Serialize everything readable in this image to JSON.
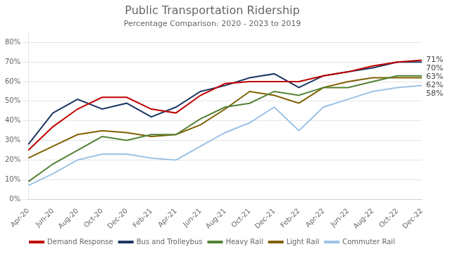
{
  "chart_data": {
    "type": "line",
    "title": "Public Transportation Ridership",
    "subtitle": "Percentage Comparison: 2020 - 2023 to 2019",
    "categories": [
      "Apr-20",
      "Jun-20",
      "Aug-20",
      "Oct-20",
      "Dec-20",
      "Feb-21",
      "Apr-21",
      "Jun-21",
      "Aug-21",
      "Oct-21",
      "Dec-21",
      "Feb-22",
      "Apr-22",
      "Jun-22",
      "Aug-22",
      "Oct-22",
      "Dec-22"
    ],
    "series": [
      {
        "name": "Demand Response",
        "color": "#c00000",
        "values": [
          25,
          37,
          46,
          52,
          52,
          46,
          44,
          53,
          59,
          60,
          60,
          60,
          63,
          65,
          68,
          70,
          71
        ]
      },
      {
        "name": "Bus and Trolleybus",
        "color": "#203864",
        "values": [
          28,
          44,
          51,
          46,
          49,
          42,
          47,
          55,
          58,
          62,
          64,
          57,
          63,
          65,
          67,
          70,
          70
        ]
      },
      {
        "name": "Heavy Rail",
        "color": "#548235",
        "values": [
          9,
          18,
          25,
          32,
          30,
          33,
          33,
          41,
          47,
          49,
          55,
          53,
          57,
          57,
          60,
          63,
          63
        ]
      },
      {
        "name": "Light Rail",
        "color": "#806000",
        "values": [
          21,
          27,
          33,
          35,
          34,
          32,
          33,
          38,
          46,
          55,
          53,
          49,
          57,
          60,
          62,
          62,
          62
        ]
      },
      {
        "name": "Commuter Rail",
        "color": "#9dc3e6",
        "values": [
          7,
          13,
          20,
          23,
          23,
          21,
          20,
          27,
          34,
          39,
          47,
          35,
          47,
          51,
          55,
          57,
          58
        ]
      }
    ],
    "ylim": [
      0,
      85
    ],
    "yticks": [
      {
        "value": 0,
        "label": "0%"
      },
      {
        "value": 10,
        "label": "10%"
      },
      {
        "value": 20,
        "label": "20%"
      },
      {
        "value": 30,
        "label": "30%"
      },
      {
        "value": 40,
        "label": "40%"
      },
      {
        "value": 50,
        "label": "50%"
      },
      {
        "value": 60,
        "label": "60%"
      },
      {
        "value": 70,
        "label": "70%"
      },
      {
        "value": 80,
        "label": "80%"
      }
    ],
    "grid": "y",
    "legend": "bottom",
    "annotations": [
      {
        "text": "71%",
        "x": "Dec-22",
        "y": 71
      },
      {
        "text": "70%",
        "x": "Dec-22",
        "y": 70
      },
      {
        "text": "63%",
        "x": "Dec-22",
        "y": 63
      },
      {
        "text": "62%",
        "x": "Dec-22",
        "y": 62
      },
      {
        "text": "58%",
        "x": "Dec-22",
        "y": 58
      }
    ]
  }
}
